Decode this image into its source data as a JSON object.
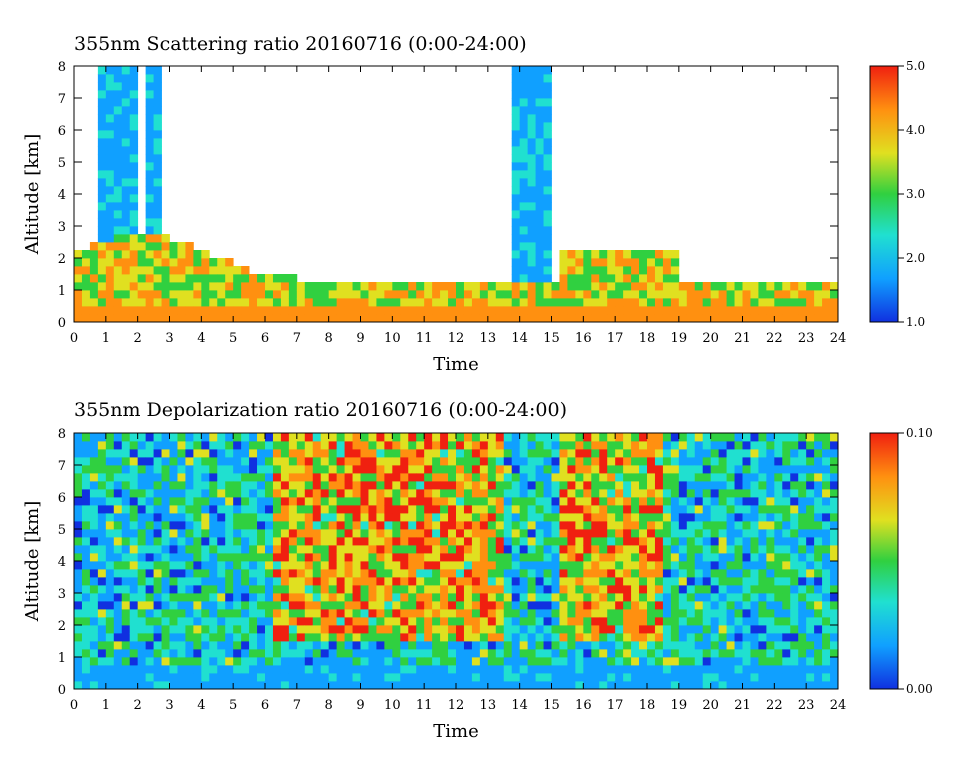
{
  "chart_data": [
    {
      "type": "heatmap",
      "title": "355nm Scattering ratio  20160716 (0:00-24:00)",
      "xlabel": "Time",
      "ylabel": "Altitude [km]",
      "xlim": [
        0,
        24
      ],
      "ylim": [
        0,
        8
      ],
      "x_ticks": [
        0,
        1,
        2,
        3,
        4,
        5,
        6,
        7,
        8,
        9,
        10,
        11,
        12,
        13,
        14,
        15,
        16,
        17,
        18,
        19,
        20,
        21,
        22,
        23,
        24
      ],
      "y_ticks": [
        0,
        1,
        2,
        3,
        4,
        5,
        6,
        7,
        8
      ],
      "colorbar": {
        "min": 1.0,
        "max": 5.0,
        "ticks": [
          "1.0",
          "2.0",
          "3.0",
          "4.0",
          "5.0"
        ]
      },
      "colormap": [
        "#1030e0",
        "#10a0ff",
        "#20e0d0",
        "#30d040",
        "#e0e020",
        "#ff9010",
        "#f02010"
      ]
    },
    {
      "type": "heatmap",
      "title": "355nm Depolarization ratio  20160716 (0:00-24:00)",
      "xlabel": "Time",
      "ylabel": "Altitude [km]",
      "xlim": [
        0,
        24
      ],
      "ylim": [
        0,
        8
      ],
      "x_ticks": [
        0,
        1,
        2,
        3,
        4,
        5,
        6,
        7,
        8,
        9,
        10,
        11,
        12,
        13,
        14,
        15,
        16,
        17,
        18,
        19,
        20,
        21,
        22,
        23,
        24
      ],
      "y_ticks": [
        0,
        1,
        2,
        3,
        4,
        5,
        6,
        7,
        8
      ],
      "colorbar": {
        "min": 0.0,
        "max": 0.1,
        "ticks": [
          "0.00",
          "0.10"
        ]
      },
      "colormap": [
        "#1030e0",
        "#10a0ff",
        "#20e0d0",
        "#30d040",
        "#e0e020",
        "#ff9010",
        "#f02010"
      ]
    }
  ]
}
